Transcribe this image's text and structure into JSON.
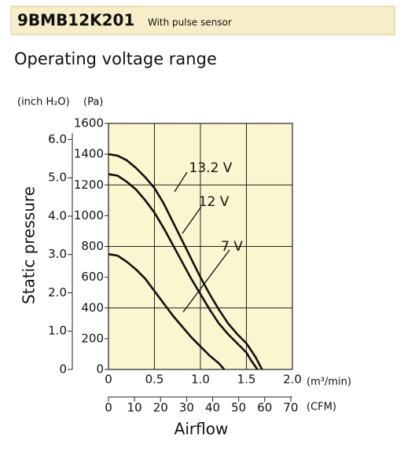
{
  "header": {
    "model": "9BMB12K201",
    "note": "With pulse sensor"
  },
  "chart_data": {
    "type": "line",
    "title": "Operating voltage range",
    "y_label": "Static pressure",
    "x_label": "Airflow",
    "y_unit": "(Pa)",
    "y2_unit": "(inch H₂O)",
    "x_unit": "(m³/min)",
    "x2_unit": "(CFM)",
    "xlim": [
      0,
      2
    ],
    "xticks": [
      0,
      0.5,
      {
        "value": 1,
        "label": "1.0"
      },
      1.5,
      {
        "value": 2,
        "label": "2.0"
      }
    ],
    "x2lim": [
      0,
      70.63
    ],
    "x2ticks": [
      0,
      10,
      20,
      30,
      40,
      50,
      60,
      70
    ],
    "ylim": [
      0,
      1600
    ],
    "yticks": [
      0,
      200,
      400,
      600,
      800,
      1000,
      1200,
      1400,
      1600
    ],
    "y2lim": [
      0,
      6.42
    ],
    "y2ticks": [
      0,
      {
        "value": 1,
        "label": "1.0"
      },
      {
        "value": 2,
        "label": "2.0"
      },
      {
        "value": 3,
        "label": "3.0"
      },
      {
        "value": 4,
        "label": "4.0"
      },
      {
        "value": 5,
        "label": "5.0"
      },
      {
        "value": 6,
        "label": "6.0"
      }
    ],
    "grid": true,
    "background": "#fbf5d0",
    "series": [
      {
        "name": "13.2 V",
        "color": "#111111",
        "x": [
          0,
          0.1,
          0.2,
          0.3,
          0.4,
          0.5,
          0.6,
          0.7,
          0.8,
          0.9,
          1.0,
          1.1,
          1.2,
          1.3,
          1.4,
          1.5,
          1.6,
          1.67
        ],
        "values": [
          1400,
          1390,
          1360,
          1310,
          1250,
          1180,
          1080,
          960,
          840,
          720,
          600,
          490,
          390,
          300,
          230,
          170,
          80,
          0
        ]
      },
      {
        "name": "12 V",
        "color": "#111111",
        "x": [
          0,
          0.1,
          0.2,
          0.3,
          0.4,
          0.5,
          0.6,
          0.7,
          0.8,
          0.9,
          1.0,
          1.1,
          1.2,
          1.3,
          1.4,
          1.5,
          1.55,
          1.62
        ],
        "values": [
          1270,
          1260,
          1220,
          1170,
          1100,
          1020,
          920,
          810,
          700,
          590,
          490,
          390,
          300,
          230,
          170,
          110,
          60,
          0
        ]
      },
      {
        "name": "7 V",
        "color": "#111111",
        "x": [
          0,
          0.1,
          0.2,
          0.3,
          0.4,
          0.5,
          0.6,
          0.7,
          0.8,
          0.9,
          1.0,
          1.1,
          1.2,
          1.26
        ],
        "values": [
          750,
          740,
          700,
          650,
          590,
          510,
          430,
          350,
          280,
          210,
          150,
          90,
          40,
          0
        ]
      }
    ]
  }
}
